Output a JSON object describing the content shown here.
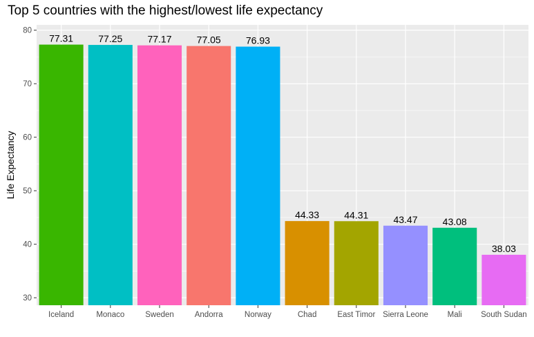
{
  "chart_data": {
    "type": "bar",
    "title": "Top 5 countries with the highest/lowest life expectancy",
    "xlabel": "",
    "ylabel": "Life Expectancy",
    "categories": [
      "Iceland",
      "Monaco",
      "Sweden",
      "Andorra",
      "Norway",
      "Chad",
      "East Timor",
      "Sierra Leone",
      "Mali",
      "South Sudan"
    ],
    "values": [
      77.31,
      77.25,
      77.17,
      77.05,
      76.93,
      44.33,
      44.31,
      43.47,
      43.08,
      38.03
    ],
    "value_labels": [
      "77.31",
      "77.25",
      "77.17",
      "77.05",
      "76.93",
      "44.33",
      "44.31",
      "43.47",
      "43.08",
      "38.03"
    ],
    "colors": [
      "#39B600",
      "#00BFC4",
      "#FF62BC",
      "#F8766D",
      "#00B0F6",
      "#D89000",
      "#A3A500",
      "#9590FF",
      "#00BF7D",
      "#E76BF3"
    ],
    "ylim": [
      28.6,
      81.0
    ],
    "yticks": [
      30,
      40,
      50,
      60,
      70,
      80
    ],
    "ytick_labels": [
      "30",
      "40",
      "50",
      "60",
      "70",
      "80"
    ],
    "panel_background": "#EBEBEB",
    "grid_color": "#FFFFFF",
    "grid": true,
    "legend": "none"
  }
}
